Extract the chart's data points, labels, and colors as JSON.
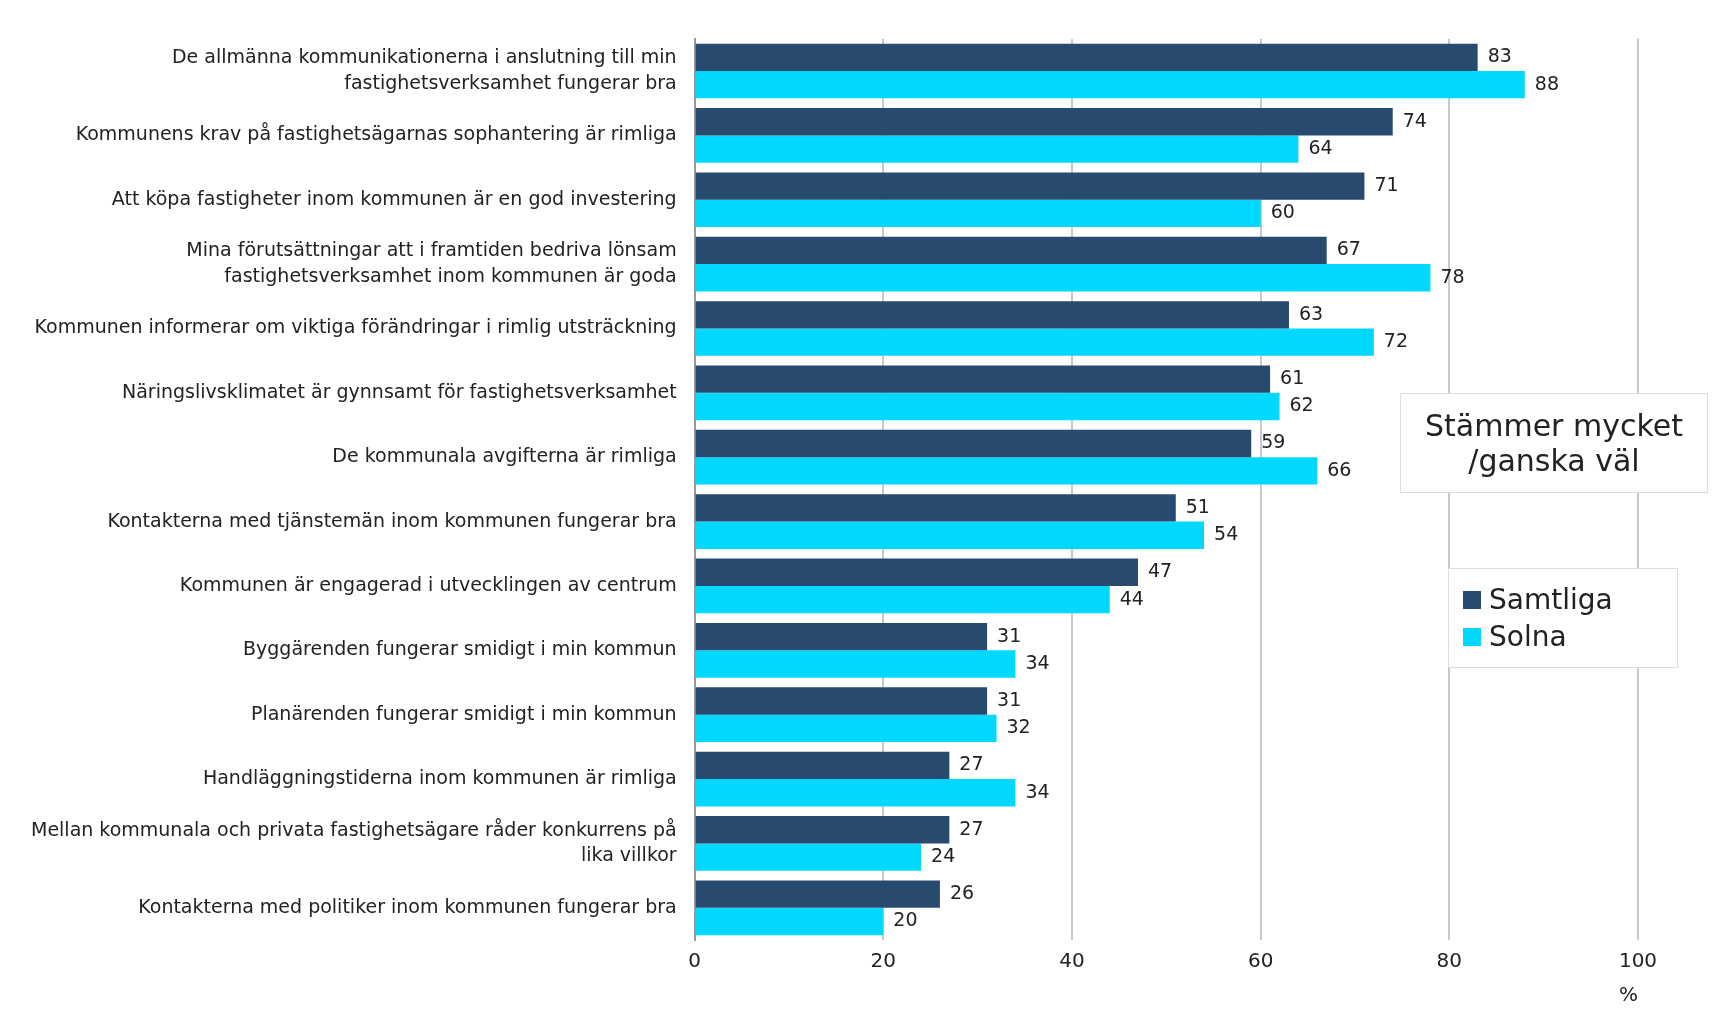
{
  "chart_data": {
    "type": "bar",
    "orientation": "horizontal",
    "xlabel": "%",
    "legend_title": "Stämmer mycket /ganska väl",
    "categories": [
      "De allmänna kommunikationerna i anslutning till min fastighetsverksamhet fungerar bra",
      "Kommunens krav på fastighetsägarnas sophantering är rimliga",
      "Att köpa fastigheter inom kommunen är en god investering",
      "Mina förutsättningar att i framtiden bedriva lönsam fastighetsverksamhet inom kommunen är goda",
      "Kommunen informerar om viktiga förändringar i rimlig utsträckning",
      "Näringslivsklimatet är gynnsamt för fastighetsverksamhet",
      "De kommunala avgifterna är rimliga",
      "Kontakterna med tjänstemän inom kommunen fungerar bra",
      "Kommunen är engagerad i utvecklingen av centrum",
      "Byggärenden fungerar smidigt i min kommun",
      "Planärenden fungerar smidigt i min kommun",
      "Handläggningstiderna inom kommunen är rimliga",
      "Mellan kommunala och privata fastighetsägare råder konkurrens på lika villkor",
      "Kontakterna med politiker inom kommunen fungerar bra"
    ],
    "series": [
      {
        "name": "Samtliga",
        "color": "#284a6e",
        "values": [
          83,
          74,
          71,
          67,
          63,
          61,
          59,
          51,
          47,
          31,
          31,
          27,
          27,
          26
        ]
      },
      {
        "name": "Solna",
        "color": "#00d8ff",
        "values": [
          88,
          64,
          60,
          78,
          72,
          62,
          66,
          54,
          44,
          34,
          32,
          34,
          24,
          20
        ]
      }
    ],
    "xlim": [
      0,
      100
    ],
    "xticks": [
      0,
      20,
      40,
      60,
      80,
      100
    ],
    "grid": "x",
    "legend": "right",
    "data_labels": true
  }
}
